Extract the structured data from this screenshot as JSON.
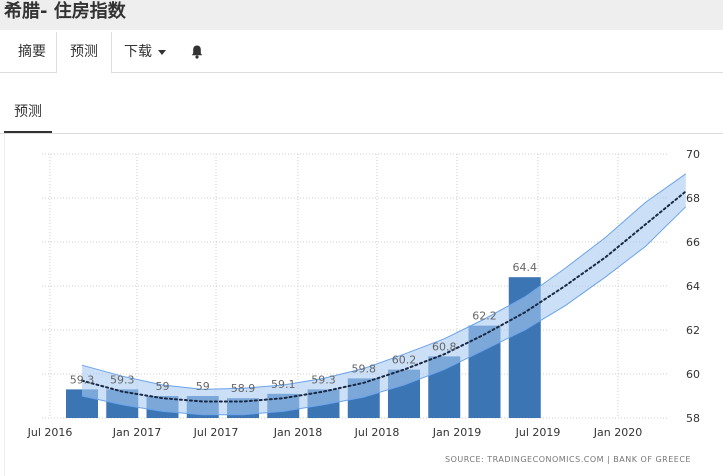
{
  "header": {
    "title": "希腊- 住房指数"
  },
  "tabs": [
    {
      "label": "摘要",
      "active": false
    },
    {
      "label": "预测",
      "active": true
    },
    {
      "label": "下载",
      "active": false
    }
  ],
  "bell_icon": "bell-icon",
  "subtab": {
    "label": "预测"
  },
  "source": "SOURCE: TRADINGECONOMICS.COM  |  BANK OF GREECE",
  "colors": {
    "bar": "#3b75b3",
    "band": "#a9c9f2",
    "band_edge": "#6aa3ea",
    "trend": "#1a2a44",
    "grid": "#cccccc"
  },
  "chart_data": {
    "type": "bar",
    "title": "",
    "xlabel": "",
    "ylabel": "",
    "ylim": [
      58,
      70
    ],
    "yticks": [
      58,
      60,
      62,
      64,
      66,
      68,
      70
    ],
    "xtick_labels": [
      "Jul 2016",
      "Jan 2017",
      "Jul 2017",
      "Jan 2018",
      "Jul 2018",
      "Jan 2019",
      "Jul 2019",
      "Jan 2020"
    ],
    "x": [
      "2016 Q3",
      "2016 Q4",
      "2017 Q1",
      "2017 Q2",
      "2017 Q3",
      "2017 Q4",
      "2018 Q1",
      "2018 Q2",
      "2018 Q3",
      "2018 Q4",
      "2019 Q1",
      "2019 Q2"
    ],
    "values": [
      59.3,
      59.3,
      59,
      59,
      58.9,
      59.1,
      59.3,
      59.8,
      60.2,
      60.8,
      62.2,
      64.4
    ],
    "data_labels": [
      "59.3",
      "59.3",
      "59",
      "59",
      "58.9",
      "59.1",
      "59.3",
      "59.8",
      "60.2",
      "60.8",
      "62.2",
      "64.4"
    ],
    "forecast": {
      "x": [
        "2016 Q3",
        "2016 Q4",
        "2017 Q1",
        "2017 Q2",
        "2017 Q3",
        "2017 Q4",
        "2018 Q1",
        "2018 Q2",
        "2018 Q3",
        "2018 Q4",
        "2019 Q1",
        "2019 Q2",
        "2019 Q3",
        "2019 Q4",
        "2020 Q1",
        "2020 Q2"
      ],
      "values": [
        59.7,
        59.2,
        58.9,
        58.75,
        58.75,
        58.9,
        59.2,
        59.6,
        60.2,
        60.9,
        61.8,
        62.8,
        64.0,
        65.3,
        66.8,
        68.3
      ],
      "band_low": [
        59.0,
        58.6,
        58.3,
        58.15,
        58.15,
        58.3,
        58.6,
        58.95,
        59.5,
        60.2,
        61.1,
        62.0,
        63.1,
        64.4,
        65.8,
        67.6
      ],
      "band_high": [
        60.4,
        59.9,
        59.5,
        59.3,
        59.35,
        59.5,
        59.8,
        60.25,
        60.9,
        61.6,
        62.5,
        63.5,
        64.8,
        66.2,
        67.8,
        69.1
      ]
    },
    "grid": true,
    "legend": "none"
  }
}
